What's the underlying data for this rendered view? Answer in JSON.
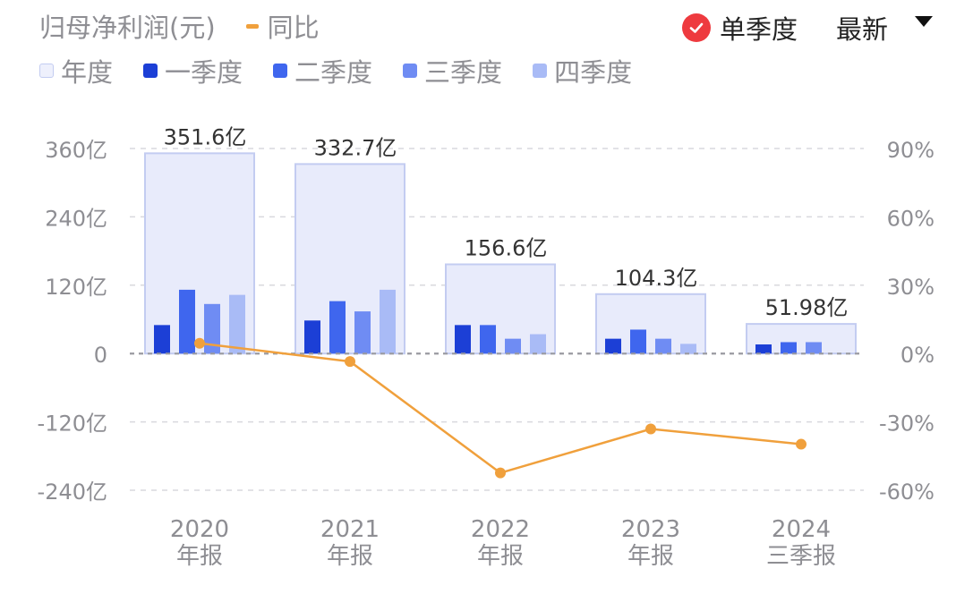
{
  "header": {
    "title": "归母净利润(元)",
    "yoy_label": "同比",
    "mode_label": "单季度",
    "period_label": "最新"
  },
  "legend": [
    {
      "label": "年度",
      "color": "#e8ebfb"
    },
    {
      "label": "一季度",
      "color": "#1c3fd6"
    },
    {
      "label": "二季度",
      "color": "#3f66ee"
    },
    {
      "label": "三季度",
      "color": "#6f8cf3"
    },
    {
      "label": "四季度",
      "color": "#a9bbf6"
    }
  ],
  "chart_data": {
    "type": "bar",
    "categories": [
      {
        "year": "2020",
        "period": "年报"
      },
      {
        "year": "2021",
        "period": "年报"
      },
      {
        "year": "2022",
        "period": "年报"
      },
      {
        "year": "2023",
        "period": "年报"
      },
      {
        "year": "2024",
        "period": "三季报"
      }
    ],
    "annual": {
      "name": "年度",
      "values": [
        351.6,
        332.7,
        156.6,
        104.3,
        51.98
      ],
      "labels": [
        "351.6亿",
        "332.7亿",
        "156.6亿",
        "104.3亿",
        "51.98亿"
      ]
    },
    "quarterly": [
      {
        "name": "一季度",
        "values": [
          50,
          58,
          50,
          26,
          16
        ]
      },
      {
        "name": "二季度",
        "values": [
          112,
          92,
          50,
          42,
          20
        ]
      },
      {
        "name": "三季度",
        "values": [
          87,
          74,
          26,
          26,
          20
        ]
      },
      {
        "name": "四季度",
        "values": [
          103,
          112,
          34,
          17,
          null
        ]
      }
    ],
    "yoy": {
      "name": "同比",
      "values": [
        4.5,
        -3.5,
        -52.4,
        -33.1,
        -39.8
      ]
    },
    "y_left": {
      "min": -240,
      "max": 360,
      "ticks": [
        "-240亿",
        "-120亿",
        "0",
        "120亿",
        "240亿",
        "360亿"
      ],
      "tick_values": [
        -240,
        -120,
        0,
        120,
        240,
        360
      ]
    },
    "y_right": {
      "min": -60,
      "max": 90,
      "ticks": [
        "-60%",
        "-30%",
        "0%",
        "30%",
        "60%",
        "90%"
      ],
      "tick_values": [
        -60,
        -30,
        0,
        30,
        60,
        90
      ]
    },
    "colors": {
      "annual_fill": "#e8ebfb",
      "annual_stroke": "#c3ccf1",
      "yoy_line": "#f0a03c",
      "grid": "#d9d9de",
      "zero_line": "#9a9aa0",
      "tick_text": "#8e8e93",
      "label_text": "#333333"
    },
    "grid": true
  }
}
